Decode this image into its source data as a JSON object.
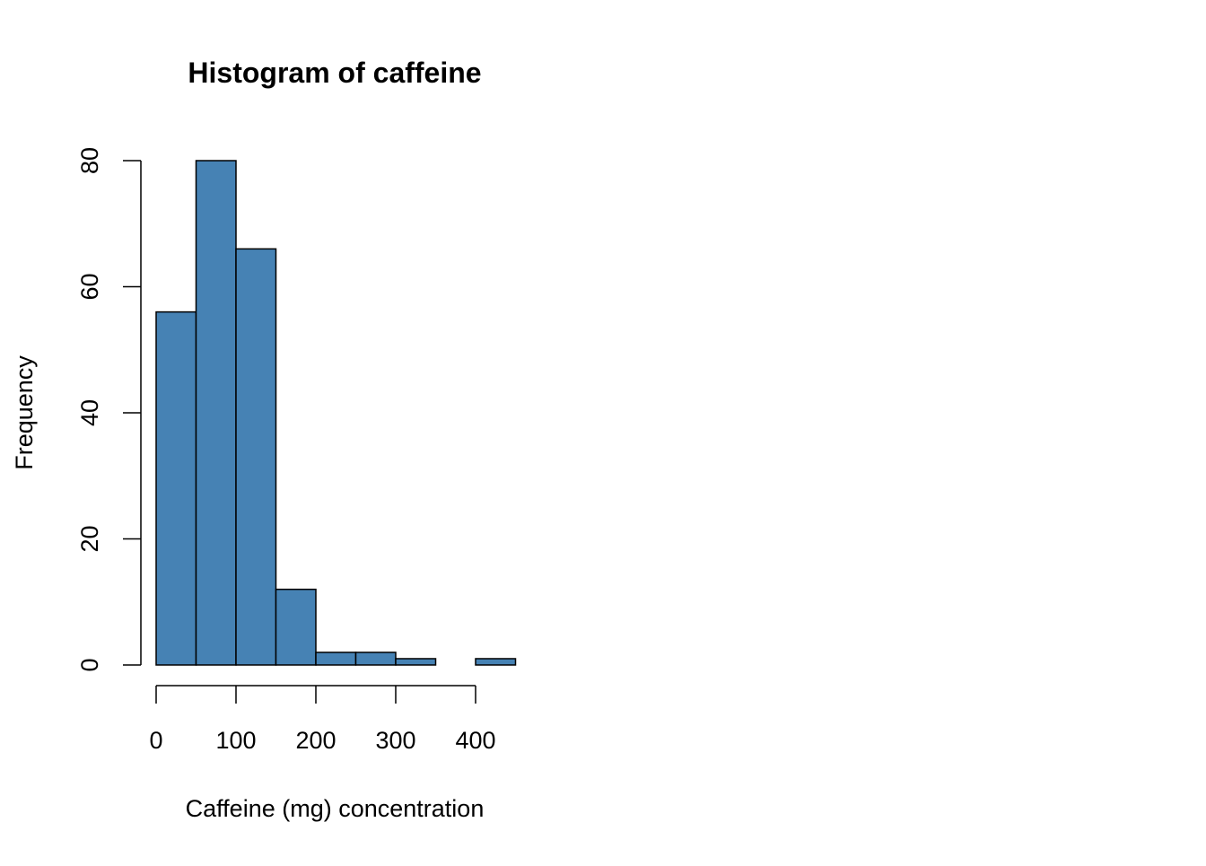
{
  "chart_data": {
    "type": "bar",
    "title": "Histogram of caffeine",
    "xlabel": "Caffeine (mg) concentration",
    "ylabel": "Frequency",
    "bins": [
      {
        "start": 0,
        "end": 50,
        "count": 56
      },
      {
        "start": 50,
        "end": 100,
        "count": 80
      },
      {
        "start": 100,
        "end": 150,
        "count": 66
      },
      {
        "start": 150,
        "end": 200,
        "count": 12
      },
      {
        "start": 200,
        "end": 250,
        "count": 2
      },
      {
        "start": 250,
        "end": 300,
        "count": 2
      },
      {
        "start": 300,
        "end": 350,
        "count": 1
      },
      {
        "start": 350,
        "end": 400,
        "count": 0
      },
      {
        "start": 400,
        "end": 450,
        "count": 1
      }
    ],
    "xlim": [
      0,
      450
    ],
    "ylim": [
      0,
      80
    ],
    "xticks": [
      "0",
      "100",
      "200",
      "300",
      "400"
    ],
    "yticks": [
      "0",
      "20",
      "40",
      "60",
      "80"
    ],
    "bar_color": "#4682B4",
    "edge_color": "#000000",
    "grid": false
  }
}
